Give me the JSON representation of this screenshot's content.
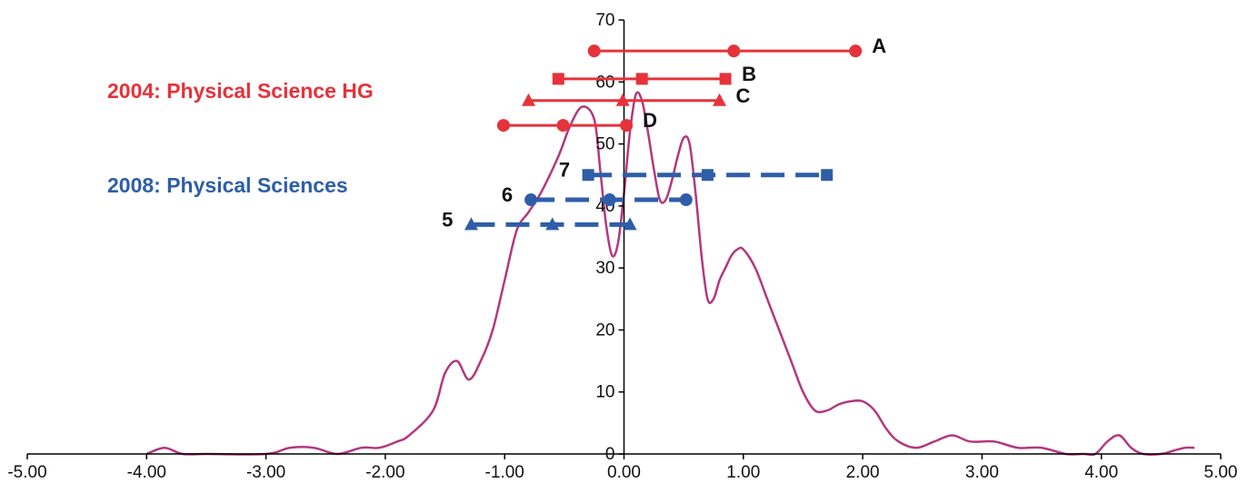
{
  "chart_data": {
    "type": "line",
    "title": "",
    "xlabel": "",
    "ylabel": "",
    "xlim": [
      -5,
      5
    ],
    "ylim": [
      0,
      70
    ],
    "x_ticks": [
      "-5.00",
      "-4.00",
      "-3.00",
      "-2.00",
      "-1.00",
      "0.00",
      "1.00",
      "2.00",
      "3.00",
      "4.00",
      "5.00"
    ],
    "y_ticks": [
      "0",
      "10",
      "20",
      "30",
      "40",
      "50",
      "60",
      "70"
    ],
    "grid": false,
    "distribution": {
      "color": "#b2387f",
      "x": [
        -4.0,
        -3.85,
        -3.7,
        -3.5,
        -3.0,
        -2.8,
        -2.6,
        -2.4,
        -2.2,
        -2.05,
        -1.9,
        -1.8,
        -1.6,
        -1.5,
        -1.4,
        -1.3,
        -1.2,
        -1.1,
        -1.0,
        -0.9,
        -0.8,
        -0.7,
        -0.55,
        -0.45,
        -0.35,
        -0.25,
        -0.2,
        -0.15,
        -0.1,
        -0.05,
        0.0,
        0.05,
        0.1,
        0.15,
        0.2,
        0.25,
        0.3,
        0.35,
        0.4,
        0.45,
        0.5,
        0.55,
        0.6,
        0.65,
        0.7,
        0.75,
        0.8,
        0.85,
        0.9,
        0.95,
        1.0,
        1.1,
        1.2,
        1.3,
        1.4,
        1.5,
        1.6,
        1.7,
        1.8,
        1.9,
        2.0,
        2.1,
        2.2,
        2.3,
        2.45,
        2.6,
        2.75,
        2.9,
        3.1,
        3.3,
        3.5,
        3.7,
        3.85,
        3.95,
        4.05,
        4.15,
        4.25,
        4.35,
        4.5,
        4.6,
        4.7,
        4.78
      ],
      "y": [
        0,
        1,
        0,
        0,
        0,
        1,
        1,
        0,
        1,
        1,
        2,
        3,
        7,
        13,
        15,
        12,
        15,
        20,
        28,
        36,
        39,
        42,
        48,
        53,
        56,
        54,
        46,
        37,
        32,
        34,
        42,
        52,
        58,
        57,
        52,
        46,
        41,
        41,
        44,
        48,
        51,
        50,
        42,
        32,
        25,
        25,
        28,
        30,
        32,
        33,
        33,
        30,
        25,
        20,
        15,
        10,
        7,
        7,
        8,
        8.5,
        8.5,
        7,
        4,
        2,
        1,
        2,
        3,
        2,
        2,
        1,
        1,
        0,
        0,
        0,
        2,
        3,
        1,
        0,
        0,
        0.5,
        1,
        1
      ]
    },
    "groups": [
      {
        "name": "2004: Physical Science HG",
        "color": "#e6323a"
      },
      {
        "name": "2008: Physical Sciences",
        "color": "#2e5ea8"
      }
    ],
    "ranges": [
      {
        "label": "A",
        "group": 0,
        "marker": "circle",
        "dashed": false,
        "y": 65,
        "x": [
          -0.25,
          0.92,
          1.94
        ]
      },
      {
        "label": "B",
        "group": 0,
        "marker": "square",
        "dashed": false,
        "y": 60.5,
        "x": [
          -0.55,
          0.15,
          0.85
        ]
      },
      {
        "label": "C",
        "group": 0,
        "marker": "triangle",
        "dashed": false,
        "y": 57,
        "x": [
          -0.8,
          -0.01,
          0.8
        ]
      },
      {
        "label": "D",
        "group": 0,
        "marker": "circle",
        "dashed": false,
        "y": 53,
        "x": [
          -1.01,
          -0.51,
          0.02
        ]
      },
      {
        "label": "7",
        "group": 1,
        "marker": "square",
        "dashed": true,
        "y": 45,
        "x": [
          -0.3,
          0.7,
          1.7
        ]
      },
      {
        "label": "6",
        "group": 1,
        "marker": "circle",
        "dashed": true,
        "y": 41,
        "x": [
          -0.78,
          -0.12,
          0.52
        ]
      },
      {
        "label": "5",
        "group": 1,
        "marker": "triangle",
        "dashed": true,
        "y": 37,
        "x": [
          -1.28,
          -0.6,
          0.05
        ]
      }
    ]
  }
}
